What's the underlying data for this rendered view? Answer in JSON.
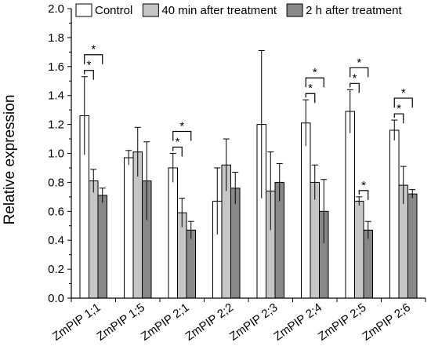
{
  "chart_data": {
    "type": "bar",
    "title": "",
    "xlabel": "",
    "ylabel": "Relative expression",
    "ylim": [
      0,
      2.0
    ],
    "yticks": [
      "0.0",
      "0.2",
      "0.4",
      "0.6",
      "0.8",
      "1.0",
      "1.2",
      "1.4",
      "1.6",
      "1.8",
      "2.0"
    ],
    "categories": [
      "ZmPIP 1;1",
      "ZmPIP 1;5",
      "ZmPIP 2;1",
      "ZmPIP 2;2",
      "ZmPIP 2;3",
      "ZmPIP 2;4",
      "ZmPIP 2;5",
      "ZmPIP 2;6"
    ],
    "legend_position": "top",
    "series": [
      {
        "name": "Control",
        "color": "#ffffff",
        "values": [
          1.26,
          0.97,
          0.9,
          0.67,
          1.2,
          1.21,
          1.29,
          1.16
        ],
        "errors": [
          0.27,
          0.05,
          0.1,
          0.23,
          0.51,
          0.16,
          0.15,
          0.07
        ]
      },
      {
        "name": "40 min after treatment",
        "color": "#c6c6c6",
        "values": [
          0.81,
          1.01,
          0.59,
          0.92,
          0.74,
          0.8,
          0.67,
          0.78
        ],
        "errors": [
          0.08,
          0.17,
          0.1,
          0.18,
          0.27,
          0.12,
          0.03,
          0.13
        ]
      },
      {
        "name": "2 h after treatment",
        "color": "#888888",
        "values": [
          0.71,
          0.81,
          0.47,
          0.76,
          0.8,
          0.6,
          0.47,
          0.72
        ],
        "errors": [
          0.05,
          0.27,
          0.06,
          0.11,
          0.13,
          0.22,
          0.06,
          0.03
        ]
      }
    ],
    "significance": [
      {
        "category": 0,
        "from": 0,
        "to": 1,
        "label": "*"
      },
      {
        "category": 0,
        "from": 0,
        "to": 2,
        "label": "*"
      },
      {
        "category": 2,
        "from": 0,
        "to": 1,
        "label": "*"
      },
      {
        "category": 2,
        "from": 0,
        "to": 2,
        "label": "*"
      },
      {
        "category": 5,
        "from": 0,
        "to": 1,
        "label": "*"
      },
      {
        "category": 5,
        "from": 0,
        "to": 2,
        "label": "*"
      },
      {
        "category": 6,
        "from": 0,
        "to": 1,
        "label": "*"
      },
      {
        "category": 6,
        "from": 0,
        "to": 2,
        "label": "*"
      },
      {
        "category": 6,
        "from": 1,
        "to": 2,
        "label": "*"
      },
      {
        "category": 7,
        "from": 0,
        "to": 1,
        "label": "*"
      },
      {
        "category": 7,
        "from": 0,
        "to": 2,
        "label": "*"
      }
    ]
  }
}
